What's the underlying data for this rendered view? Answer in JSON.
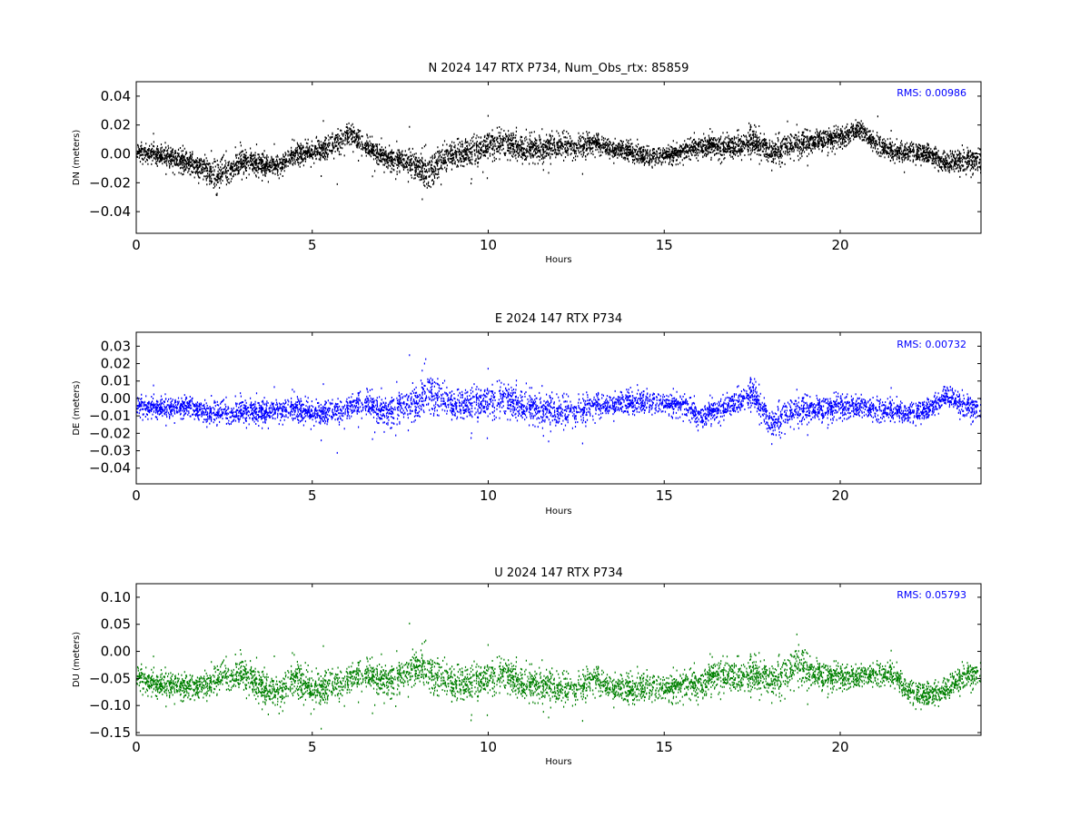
{
  "chart_data": [
    {
      "type": "scatter",
      "title": "N 2024 147 RTX  P734, Num_Obs_rtx: 85859",
      "xlabel": "Hours",
      "ylabel": "DN (meters)",
      "xlim": [
        0,
        24
      ],
      "ylim": [
        -0.055,
        0.05
      ],
      "xticks": [
        0,
        5,
        10,
        15,
        20
      ],
      "xtick_labels": [
        "0",
        "5",
        "10",
        "15",
        "20"
      ],
      "yticks": [
        -0.04,
        -0.02,
        0.0,
        0.02,
        0.04
      ],
      "ytick_labels": [
        "−0.04",
        "−0.02",
        "0.00",
        "0.02",
        "0.04"
      ],
      "annotation": "RMS:  0.00986",
      "annotation_color": "#0000ff",
      "grid": false,
      "series": [
        {
          "color": "#000000",
          "x": [
            0,
            0.5,
            1.0,
            1.5,
            2.0,
            2.25,
            2.5,
            3.0,
            3.5,
            4.0,
            4.5,
            5.0,
            5.5,
            6.0,
            6.5,
            7.0,
            7.5,
            8.0,
            8.25,
            8.5,
            9.0,
            9.5,
            10.0,
            10.5,
            11.0,
            11.5,
            12.0,
            12.5,
            13.0,
            13.5,
            14.0,
            14.5,
            15.0,
            15.5,
            16.0,
            16.5,
            17.0,
            17.5,
            18.0,
            18.5,
            19.0,
            19.5,
            20.0,
            20.5,
            21.0,
            21.5,
            22.0,
            22.5,
            23.0,
            23.5,
            24.0
          ],
          "y": [
            0.002,
            0.0,
            -0.002,
            -0.006,
            -0.01,
            -0.016,
            -0.012,
            -0.004,
            -0.006,
            -0.008,
            0.0,
            0.002,
            0.006,
            0.014,
            0.006,
            -0.002,
            -0.004,
            -0.008,
            -0.014,
            -0.008,
            0.0,
            0.002,
            0.006,
            0.008,
            0.004,
            0.004,
            0.006,
            0.006,
            0.008,
            0.004,
            0.002,
            -0.002,
            0.0,
            0.002,
            0.006,
            0.006,
            0.006,
            0.01,
            0.002,
            0.006,
            0.008,
            0.01,
            0.012,
            0.018,
            0.008,
            0.002,
            0.002,
            0.0,
            -0.006,
            -0.004,
            -0.004
          ],
          "spread": [
            0.008,
            0.009,
            0.01,
            0.011,
            0.012,
            0.016,
            0.014,
            0.011,
            0.011,
            0.01,
            0.009,
            0.01,
            0.011,
            0.011,
            0.01,
            0.01,
            0.011,
            0.014,
            0.016,
            0.014,
            0.013,
            0.013,
            0.014,
            0.013,
            0.012,
            0.012,
            0.012,
            0.011,
            0.01,
            0.009,
            0.008,
            0.008,
            0.008,
            0.008,
            0.009,
            0.01,
            0.011,
            0.012,
            0.012,
            0.011,
            0.011,
            0.01,
            0.01,
            0.009,
            0.009,
            0.009,
            0.009,
            0.009,
            0.01,
            0.011,
            0.011
          ]
        }
      ]
    },
    {
      "type": "scatter",
      "title": "E 2024 147 RTX  P734",
      "xlabel": "Hours",
      "ylabel": "DE (meters)",
      "xlim": [
        0,
        24
      ],
      "ylim": [
        -0.049,
        0.038
      ],
      "xticks": [
        0,
        5,
        10,
        15,
        20
      ],
      "xtick_labels": [
        "0",
        "5",
        "10",
        "15",
        "20"
      ],
      "yticks": [
        -0.04,
        -0.03,
        -0.02,
        -0.01,
        0.0,
        0.01,
        0.02,
        0.03
      ],
      "ytick_labels": [
        "−0.04",
        "−0.03",
        "−0.02",
        "−0.01",
        "0.00",
        "0.01",
        "0.02",
        "0.03"
      ],
      "annotation": "RMS:  0.00732",
      "annotation_color": "#0000ff",
      "grid": false,
      "series": [
        {
          "color": "#0000ff",
          "x": [
            0,
            0.5,
            1.0,
            1.5,
            2.0,
            2.5,
            3.0,
            3.5,
            4.0,
            4.5,
            5.0,
            5.5,
            6.0,
            6.5,
            7.0,
            7.5,
            8.0,
            8.25,
            8.5,
            9.0,
            9.5,
            10.0,
            10.5,
            11.0,
            11.5,
            12.0,
            12.5,
            13.0,
            13.5,
            14.0,
            14.5,
            15.0,
            15.5,
            16.0,
            16.5,
            17.0,
            17.5,
            18.0,
            18.5,
            19.0,
            19.5,
            20.0,
            20.5,
            21.0,
            21.5,
            22.0,
            22.5,
            23.0,
            23.5,
            24.0
          ],
          "y": [
            -0.004,
            -0.005,
            -0.005,
            -0.004,
            -0.008,
            -0.008,
            -0.007,
            -0.007,
            -0.006,
            -0.006,
            -0.008,
            -0.007,
            -0.006,
            -0.002,
            -0.008,
            -0.004,
            -0.002,
            0.004,
            0.0,
            -0.004,
            -0.002,
            -0.002,
            0.0,
            -0.004,
            -0.006,
            -0.008,
            -0.006,
            -0.004,
            -0.003,
            -0.002,
            -0.002,
            -0.002,
            -0.003,
            -0.01,
            -0.006,
            -0.002,
            0.004,
            -0.014,
            -0.008,
            -0.006,
            -0.006,
            -0.004,
            -0.004,
            -0.006,
            -0.006,
            -0.008,
            -0.006,
            0.002,
            -0.004,
            -0.006
          ],
          "spread": [
            0.008,
            0.008,
            0.008,
            0.008,
            0.009,
            0.009,
            0.009,
            0.009,
            0.009,
            0.009,
            0.009,
            0.009,
            0.009,
            0.01,
            0.011,
            0.013,
            0.015,
            0.016,
            0.014,
            0.011,
            0.012,
            0.013,
            0.013,
            0.012,
            0.012,
            0.012,
            0.011,
            0.01,
            0.009,
            0.008,
            0.008,
            0.008,
            0.008,
            0.008,
            0.008,
            0.009,
            0.01,
            0.011,
            0.01,
            0.01,
            0.01,
            0.01,
            0.009,
            0.009,
            0.008,
            0.008,
            0.008,
            0.008,
            0.009,
            0.009
          ]
        }
      ]
    },
    {
      "type": "scatter",
      "title": "U 2024 147 RTX  P734",
      "xlabel": "Hours",
      "ylabel": "DU (meters)",
      "xlim": [
        0,
        24
      ],
      "ylim": [
        -0.155,
        0.125
      ],
      "xticks": [
        0,
        5,
        10,
        15,
        20
      ],
      "xtick_labels": [
        "0",
        "5",
        "10",
        "15",
        "20"
      ],
      "yticks": [
        -0.15,
        -0.1,
        -0.05,
        0.0,
        0.05,
        0.1
      ],
      "ytick_labels": [
        "−0.15",
        "−0.10",
        "−0.05",
        "0.00",
        "0.05",
        "0.10"
      ],
      "annotation": "RMS:  0.05793",
      "annotation_color": "#0000ff",
      "grid": false,
      "series": [
        {
          "color": "#008000",
          "x": [
            0,
            0.5,
            1.0,
            1.5,
            2.0,
            2.5,
            3.0,
            3.5,
            4.0,
            4.5,
            5.0,
            5.5,
            6.0,
            6.5,
            7.0,
            7.5,
            8.0,
            8.5,
            9.0,
            9.5,
            10.0,
            10.5,
            11.0,
            11.5,
            12.0,
            12.5,
            13.0,
            13.5,
            14.0,
            14.5,
            15.0,
            15.5,
            16.0,
            16.5,
            17.0,
            17.5,
            18.0,
            18.5,
            18.8,
            19.0,
            19.5,
            20.0,
            20.5,
            21.0,
            21.5,
            22.0,
            22.5,
            23.0,
            23.5,
            24.0
          ],
          "y": [
            -0.045,
            -0.06,
            -0.06,
            -0.065,
            -0.06,
            -0.045,
            -0.04,
            -0.06,
            -0.075,
            -0.05,
            -0.07,
            -0.06,
            -0.055,
            -0.04,
            -0.055,
            -0.045,
            -0.025,
            -0.05,
            -0.06,
            -0.055,
            -0.05,
            -0.04,
            -0.06,
            -0.06,
            -0.07,
            -0.065,
            -0.05,
            -0.065,
            -0.07,
            -0.065,
            -0.065,
            -0.06,
            -0.06,
            -0.04,
            -0.045,
            -0.04,
            -0.05,
            -0.04,
            -0.02,
            -0.035,
            -0.045,
            -0.045,
            -0.045,
            -0.04,
            -0.04,
            -0.075,
            -0.08,
            -0.07,
            -0.045,
            -0.04
          ],
          "spread": [
            0.03,
            0.032,
            0.032,
            0.032,
            0.034,
            0.036,
            0.038,
            0.04,
            0.045,
            0.04,
            0.045,
            0.04,
            0.036,
            0.036,
            0.04,
            0.042,
            0.045,
            0.045,
            0.045,
            0.042,
            0.042,
            0.04,
            0.04,
            0.04,
            0.038,
            0.036,
            0.035,
            0.034,
            0.032,
            0.032,
            0.032,
            0.032,
            0.034,
            0.038,
            0.04,
            0.04,
            0.04,
            0.042,
            0.045,
            0.042,
            0.036,
            0.032,
            0.03,
            0.028,
            0.028,
            0.03,
            0.03,
            0.03,
            0.03,
            0.03
          ]
        }
      ]
    }
  ]
}
